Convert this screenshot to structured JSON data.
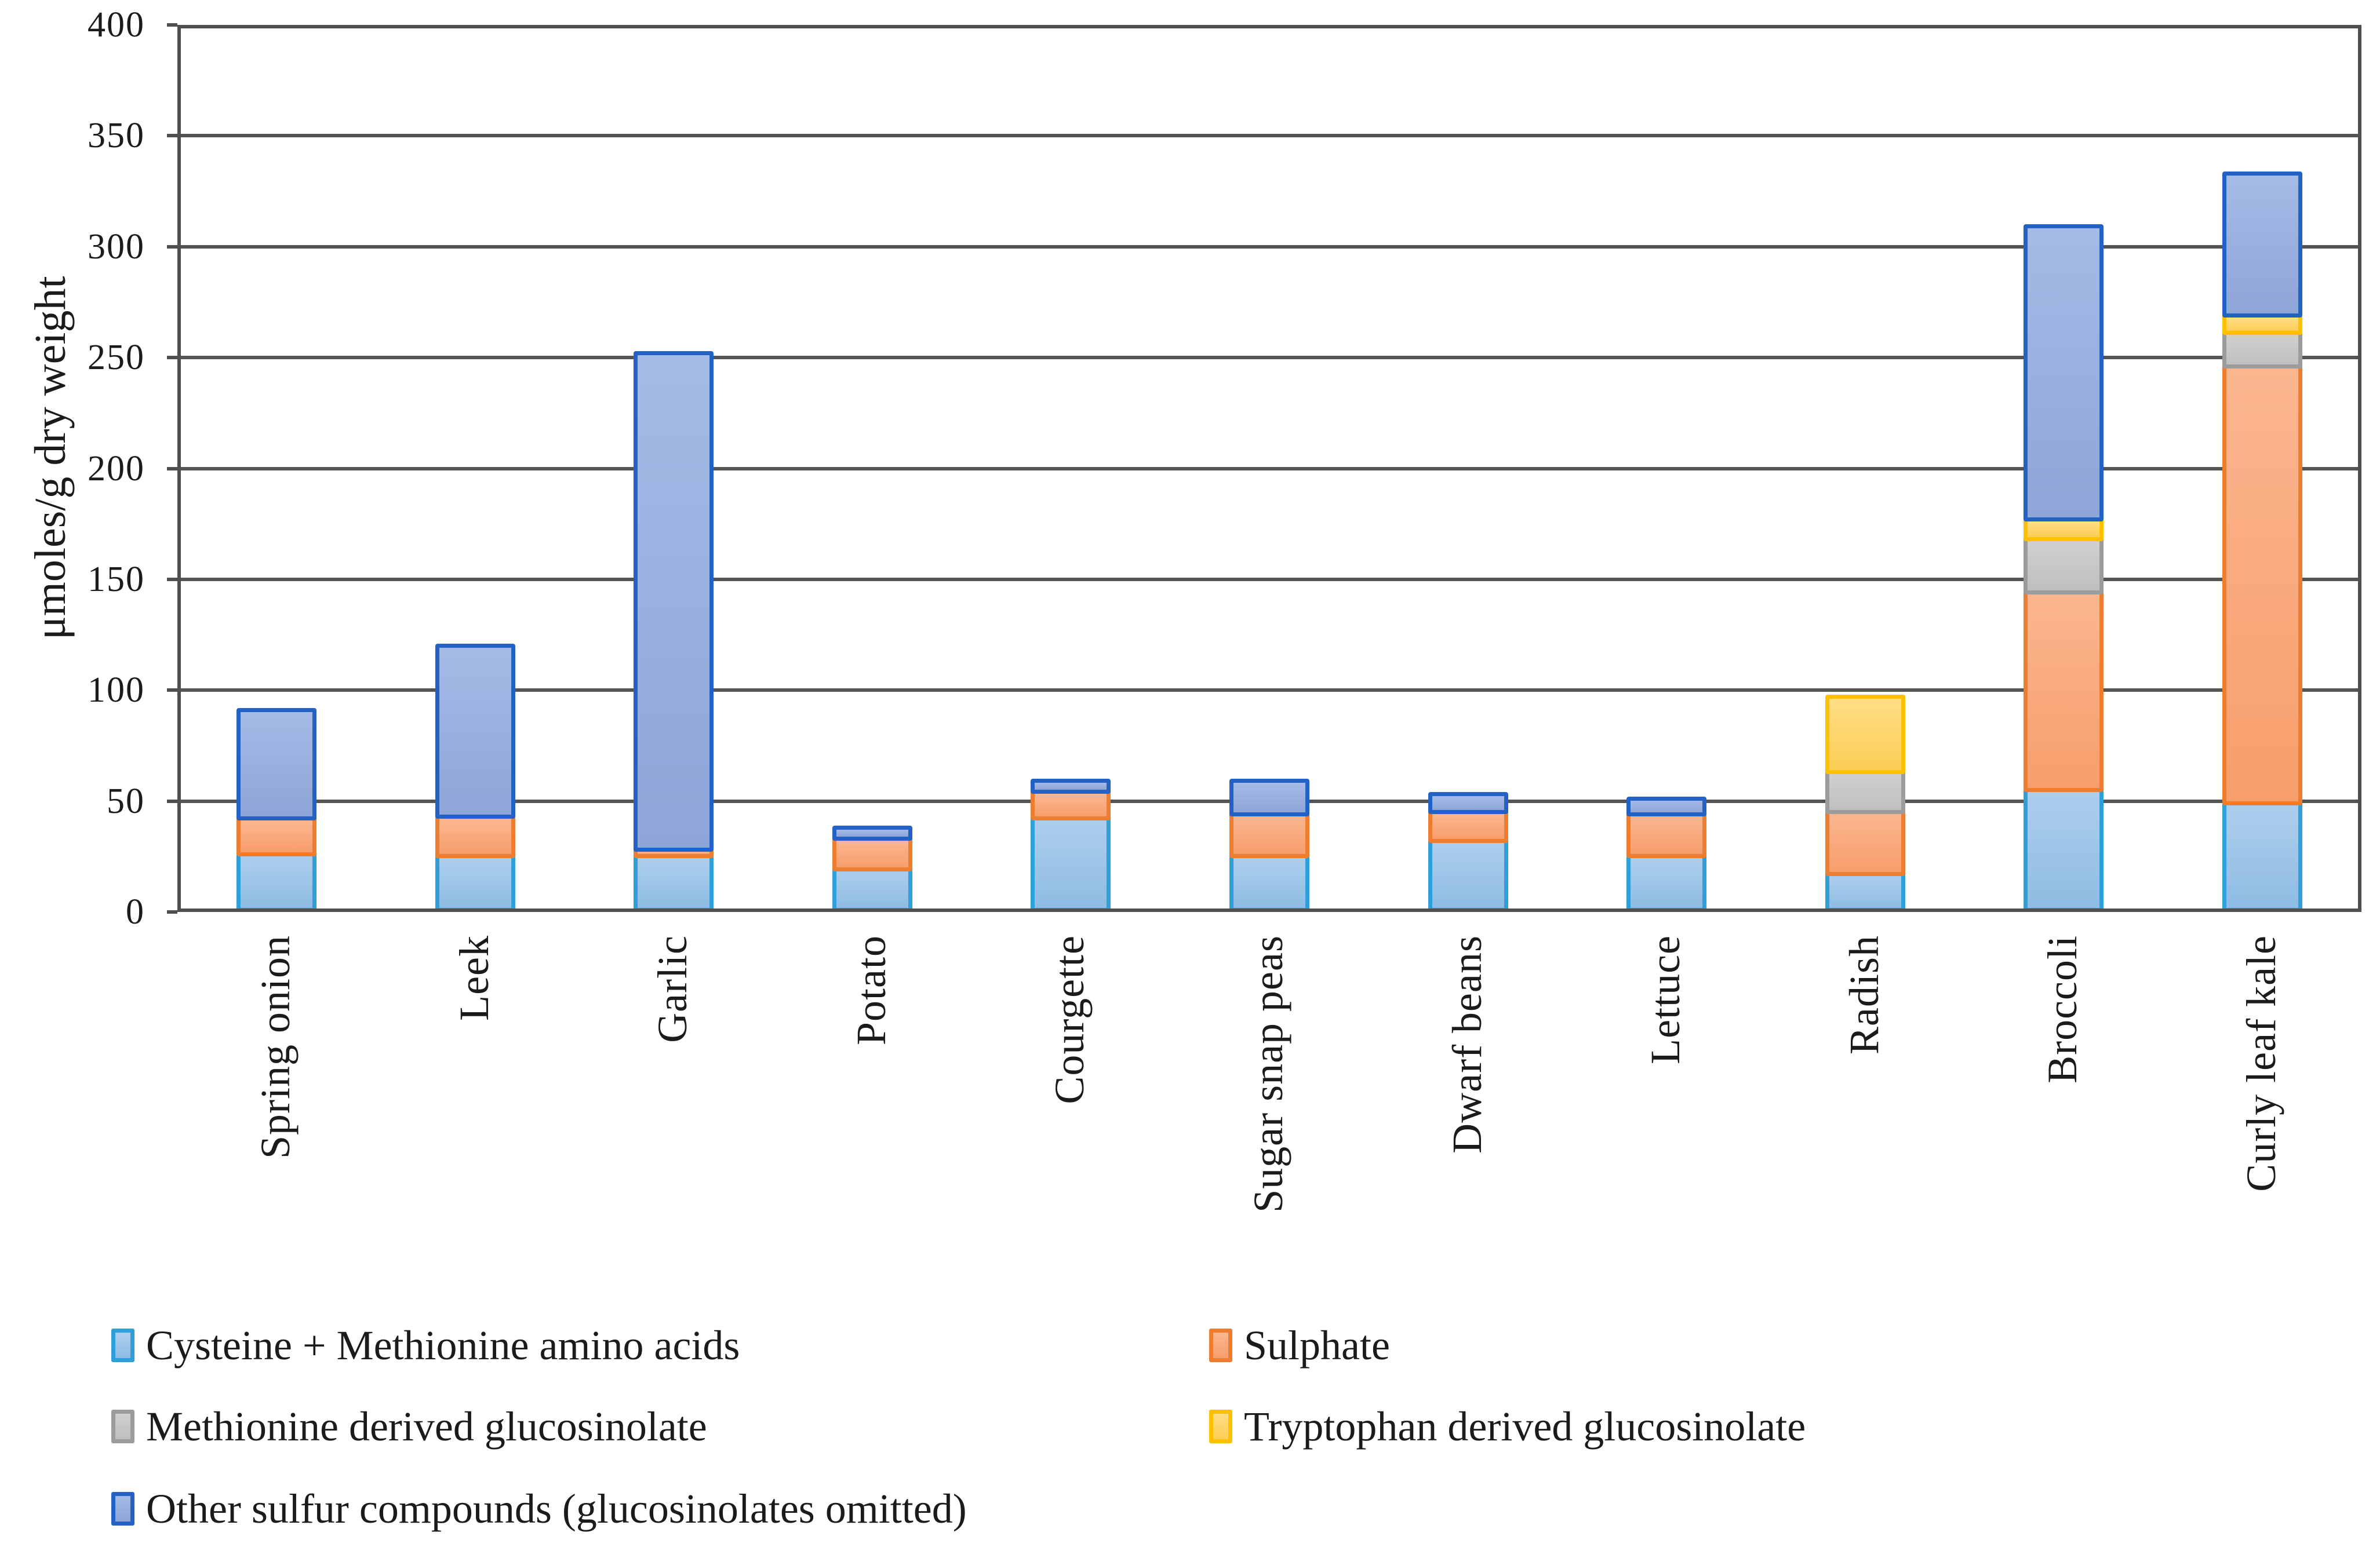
{
  "chart_data": {
    "type": "bar",
    "stacked": true,
    "title": "",
    "xlabel": "",
    "ylabel": "μmoles/g dry weight",
    "ylim": [
      0,
      400
    ],
    "ytick_step": 50,
    "yticks": [
      0,
      50,
      100,
      150,
      200,
      250,
      300,
      350,
      400
    ],
    "grid": "horizontal",
    "legend_position": "bottom",
    "categories": [
      "Spring onion",
      "Leek",
      "Garlic",
      "Potato",
      "Courgette",
      "Sugar snap peas",
      "Dwarf beans",
      "Lettuce",
      "Radish",
      "Broccoli",
      "Curly leaf kale"
    ],
    "series": [
      {
        "name": "Cysteine + Methionine amino acids",
        "fill": "#8FBCE3",
        "fill_light": "#ACCEED",
        "border": "#2E9FD9",
        "values": [
          27,
          26,
          26,
          20,
          43,
          26,
          33,
          26,
          18,
          56,
          50
        ]
      },
      {
        "name": "Sulphate",
        "fill": "#F79E6C",
        "fill_light": "#FBB68F",
        "border": "#ED7D31",
        "values": [
          16,
          18,
          3,
          14,
          12,
          19,
          13,
          19,
          28,
          89,
          197
        ]
      },
      {
        "name": "Methionine derived glucosinolate",
        "fill": "#BFBFBF",
        "fill_light": "#D0D0D0",
        "border": "#9C9C9C",
        "values": [
          0,
          0,
          0,
          0,
          0,
          0,
          0,
          0,
          18,
          24,
          15
        ]
      },
      {
        "name": "Tryptophan derived glucosinolate",
        "fill": "#FBCD55",
        "fill_light": "#FFDE85",
        "border": "#FFC000",
        "values": [
          0,
          0,
          0,
          0,
          0,
          0,
          0,
          0,
          34,
          9,
          8
        ]
      },
      {
        "name": "Other sulfur compounds (glucosinolates omitted)",
        "fill": "#8DA5D7",
        "fill_light": "#A6BAE6",
        "border": "#2362C4",
        "values": [
          49,
          77,
          224,
          5,
          5,
          15,
          8,
          7,
          0,
          132,
          64
        ]
      }
    ]
  }
}
